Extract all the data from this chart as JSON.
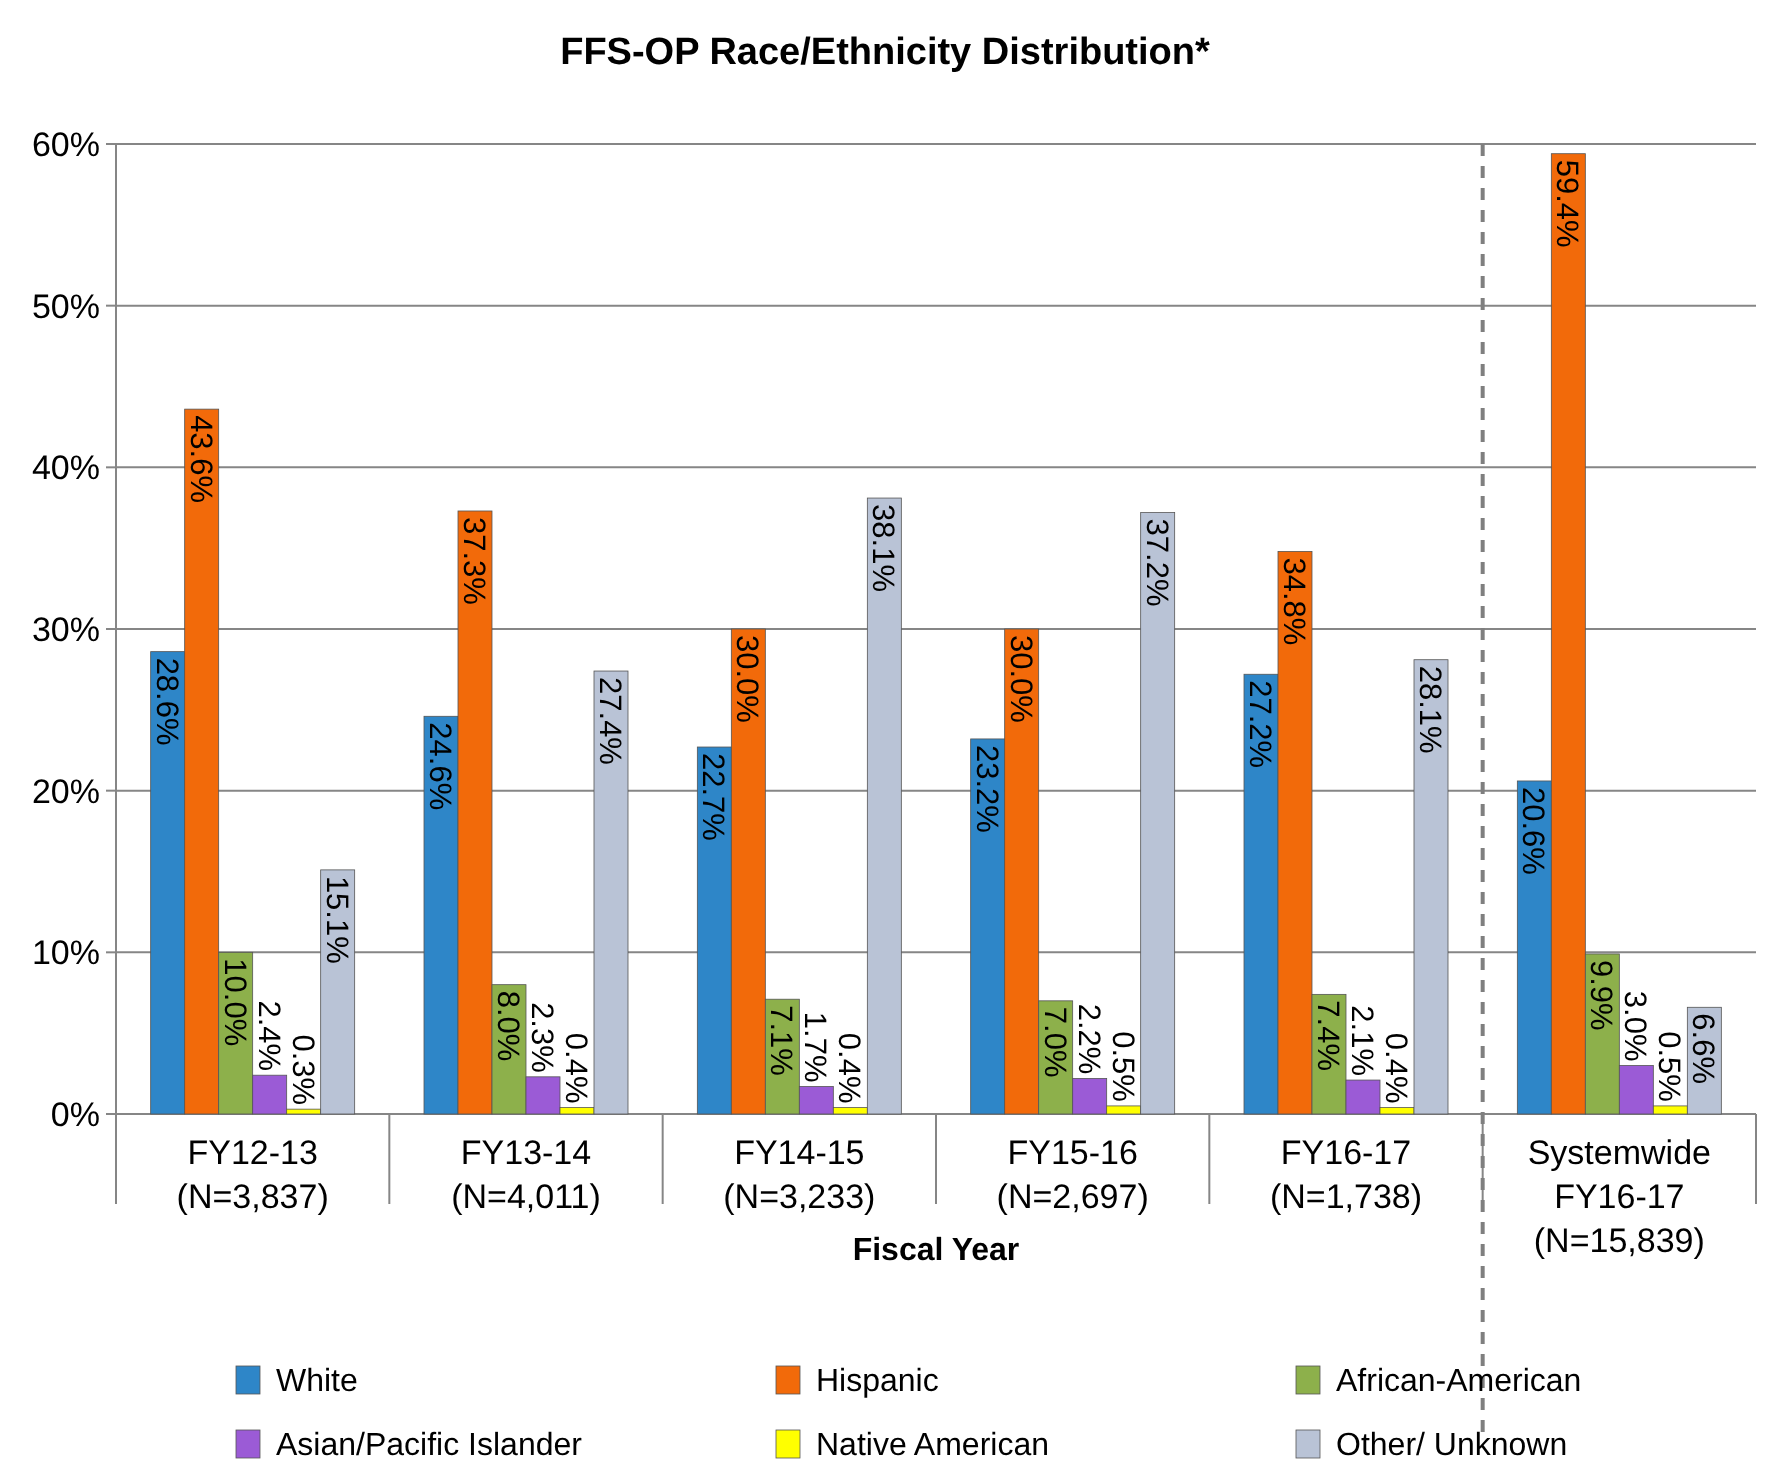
{
  "chart_data": {
    "type": "bar",
    "title": "FFS-OP Race/Ethnicity Distribution*",
    "xlabel": "Fiscal Year",
    "categories": [
      "FY12-13\n(N=3,837)",
      "FY13-14\n(N=4,011)",
      "FY14-15\n(N=3,233)",
      "FY15-16\n(N=2,697)",
      "FY16-17\n(N=1,738)",
      "Systemwide\nFY16-17\n(N=15,839)"
    ],
    "series": [
      {
        "name": "White",
        "color": "#2e86c8",
        "values": [
          28.6,
          24.6,
          22.7,
          23.2,
          27.2,
          20.6
        ],
        "value_labels": [
          "28.6%",
          "24.6%",
          "22.7%",
          "23.2%",
          "27.2%",
          "20.6%"
        ]
      },
      {
        "name": "Hispanic",
        "color": "#f26a0a",
        "values": [
          43.6,
          37.3,
          30.0,
          30.0,
          34.8,
          59.4
        ],
        "value_labels": [
          "43.6%",
          "37.3%",
          "30.0%",
          "30.0%",
          "34.8%",
          "59.4%"
        ]
      },
      {
        "name": "African-American",
        "color": "#8db04b",
        "values": [
          10.0,
          8.0,
          7.1,
          7.0,
          7.4,
          9.9
        ],
        "value_labels": [
          "10.0%",
          "8.0%",
          "7.1%",
          "7.0%",
          "7.4%",
          "9.9%"
        ]
      },
      {
        "name": "Asian/Pacific Islander",
        "color": "#9b5bd6",
        "values": [
          2.4,
          2.3,
          1.7,
          2.2,
          2.1,
          3.0
        ],
        "value_labels": [
          "2.4%",
          "2.3%",
          "1.7%",
          "2.2%",
          "2.1%",
          "3.0%"
        ]
      },
      {
        "name": "Native American",
        "color": "#ffff00",
        "values": [
          0.3,
          0.4,
          0.4,
          0.5,
          0.4,
          0.5
        ],
        "value_labels": [
          "0.3%",
          "0.4%",
          "0.4%",
          "0.5%",
          "0.4%",
          "0.5%"
        ]
      },
      {
        "name": "Other/ Unknown",
        "color": "#b9c3d6",
        "values": [
          15.1,
          27.4,
          38.1,
          37.2,
          28.1,
          6.6
        ],
        "value_labels": [
          "15.1%",
          "27.4%",
          "38.1%",
          "37.2%",
          "28.1%",
          "6.6%"
        ]
      }
    ],
    "ylim": [
      0,
      60
    ],
    "yticks": [
      {
        "value": 0,
        "label": "0%"
      },
      {
        "value": 10,
        "label": "10%"
      },
      {
        "value": 20,
        "label": "20%"
      },
      {
        "value": 30,
        "label": "30%"
      },
      {
        "value": 40,
        "label": "40%"
      },
      {
        "value": 50,
        "label": "50%"
      },
      {
        "value": 60,
        "label": "60%"
      }
    ],
    "grid": "y",
    "legend": "bottom"
  }
}
